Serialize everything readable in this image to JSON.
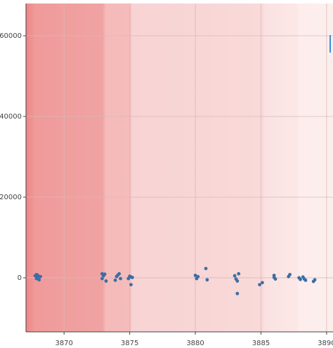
{
  "chart_data": {
    "type": "scatter",
    "color": "#3a6ea5",
    "x": [
      3867.8,
      3867.9,
      3868.0,
      3868.1,
      3868.2,
      3867.9,
      3868.0,
      3872.9,
      3873.0,
      3873.1,
      3873.2,
      3872.9,
      3873.9,
      3874.0,
      3874.1,
      3874.2,
      3874.3,
      3874.9,
      3875.0,
      3875.1,
      3875.2,
      3875.1,
      3880.0,
      3880.1,
      3880.2,
      3880.8,
      3880.9,
      3883.0,
      3883.1,
      3883.2,
      3883.3,
      3883.2,
      3884.9,
      3885.1,
      3886.0,
      3886.1,
      3886.0,
      3887.1,
      3887.2,
      3887.9,
      3888.0,
      3888.2,
      3888.3,
      3888.4,
      3889.0,
      3889.1
    ],
    "values": [
      500,
      800,
      200,
      -500,
      300,
      -200,
      600,
      1000,
      500,
      900,
      -800,
      -200,
      -600,
      300,
      700,
      1000,
      -200,
      -200,
      400,
      -1700,
      100,
      200,
      600,
      -200,
      300,
      2300,
      -500,
      500,
      -300,
      -800,
      1000,
      -3900,
      -1700,
      -1200,
      600,
      -300,
      100,
      300,
      800,
      0,
      -400,
      200,
      -300,
      -600,
      -900,
      -500
    ],
    "xlim": [
      3867.1,
      3890.3
    ],
    "ylim": [
      -13400,
      68000
    ],
    "xticks": [
      3870,
      3875,
      3880,
      3885,
      3890
    ],
    "yticks": [
      0,
      20000,
      40000,
      60000
    ],
    "grid": true
  }
}
